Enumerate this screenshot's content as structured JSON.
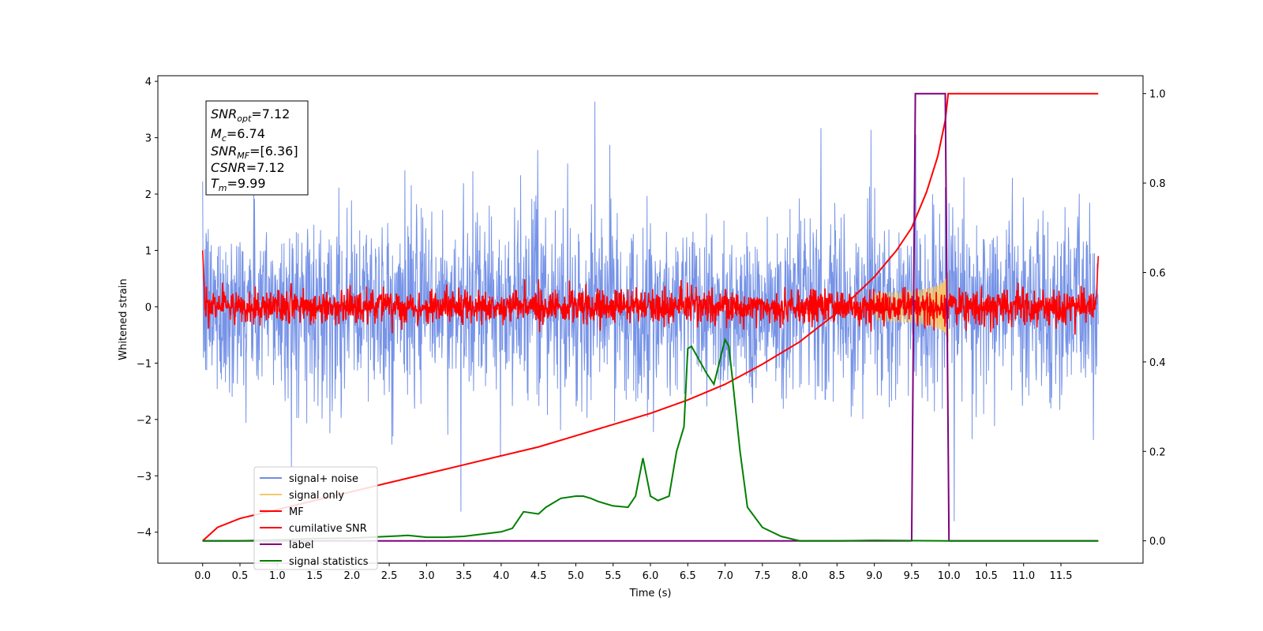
{
  "chart_data": {
    "type": "line",
    "xlabel": "Time (s)",
    "ylabel": "Whitened strain",
    "xlim": [
      -0.6,
      12.6
    ],
    "ylim": [
      -4.55,
      4.1
    ],
    "y2lim": [
      -0.05,
      1.04
    ],
    "x_ticks": [
      "0.0",
      "0.5",
      "1.0",
      "1.5",
      "2.0",
      "2.5",
      "3.0",
      "3.5",
      "4.0",
      "4.5",
      "5.0",
      "5.5",
      "6.0",
      "6.5",
      "7.0",
      "7.5",
      "8.0",
      "8.5",
      "9.0",
      "9.5",
      "10.0",
      "10.5",
      "11.0",
      "11.5"
    ],
    "y_ticks": [
      "4",
      "3",
      "2",
      "1",
      "0",
      "−1",
      "−2",
      "−3",
      "−4"
    ],
    "y2_ticks": [
      "1.0",
      "0.8",
      "0.6",
      "0.4",
      "0.2",
      "0.0"
    ],
    "annotations": {
      "snr_opt": {
        "label": "SNR",
        "sub": "opt",
        "value": "=7.12"
      },
      "mc": {
        "label": "M",
        "sub": "c",
        "value": "=6.74"
      },
      "snr_mf": {
        "label": "SNR",
        "sub": "MF",
        "value": "=[6.36]"
      },
      "csnr": {
        "label": "CSNR",
        "sub": "",
        "value": "=7.12"
      },
      "tm": {
        "label": "T",
        "sub": "m",
        "value": "=9.99"
      }
    },
    "legend_position": "lower-left",
    "series": [
      {
        "name": "signal+ noise",
        "color": "#6f8de6",
        "axis": "left",
        "noise_std": 0.8,
        "t_range": [
          0.0,
          12.0
        ]
      },
      {
        "name": "signal only",
        "color": "#f5c66e",
        "axis": "left",
        "chirp_end": 9.99,
        "peak_amplitude": 0.65
      },
      {
        "name": "MF",
        "color": "#ff0000",
        "axis": "left",
        "noise_std": 0.15,
        "t_range": [
          0.0,
          12.0
        ]
      },
      {
        "name": "cumilative SNR",
        "color": "#ff0000",
        "axis": "right",
        "x": [
          0.0,
          0.2,
          0.5,
          1.0,
          1.5,
          2.0,
          2.5,
          3.0,
          3.5,
          4.0,
          4.5,
          5.0,
          5.5,
          6.0,
          6.5,
          7.0,
          7.5,
          8.0,
          8.5,
          9.0,
          9.3,
          9.5,
          9.7,
          9.85,
          9.95,
          9.99,
          10.5,
          11.0,
          11.5,
          12.0
        ],
        "y": [
          0.0,
          0.03,
          0.05,
          0.07,
          0.09,
          0.11,
          0.13,
          0.15,
          0.17,
          0.19,
          0.21,
          0.235,
          0.26,
          0.285,
          0.315,
          0.35,
          0.395,
          0.445,
          0.51,
          0.59,
          0.65,
          0.7,
          0.78,
          0.86,
          0.94,
          1.0,
          1.0,
          1.0,
          1.0,
          1.0
        ]
      },
      {
        "name": "label",
        "color": "#800080",
        "axis": "right",
        "x": [
          0.0,
          9.5,
          9.55,
          9.95,
          10.0,
          12.0
        ],
        "y": [
          0.0,
          0.0,
          1.0,
          1.0,
          0.0,
          0.0
        ]
      },
      {
        "name": "signal statistics",
        "color": "#008000",
        "axis": "right",
        "x": [
          0.0,
          0.5,
          1.0,
          1.5,
          2.0,
          2.5,
          2.75,
          3.0,
          3.25,
          3.5,
          3.75,
          4.0,
          4.15,
          4.3,
          4.5,
          4.6,
          4.8,
          5.0,
          5.1,
          5.2,
          5.3,
          5.5,
          5.7,
          5.8,
          5.9,
          6.0,
          6.1,
          6.25,
          6.35,
          6.45,
          6.5,
          6.55,
          6.6,
          6.65,
          6.75,
          6.85,
          7.0,
          7.05,
          7.1,
          7.2,
          7.3,
          7.5,
          7.75,
          8.0,
          8.5,
          9.0,
          10.0,
          11.0,
          11.5,
          12.0
        ],
        "y": [
          0.0,
          0.0,
          0.002,
          0.005,
          0.006,
          0.01,
          0.012,
          0.008,
          0.008,
          0.01,
          0.015,
          0.02,
          0.028,
          0.065,
          0.06,
          0.075,
          0.095,
          0.1,
          0.1,
          0.095,
          0.088,
          0.078,
          0.075,
          0.1,
          0.185,
          0.1,
          0.09,
          0.1,
          0.2,
          0.255,
          0.43,
          0.435,
          0.42,
          0.405,
          0.375,
          0.35,
          0.45,
          0.435,
          0.36,
          0.2,
          0.075,
          0.03,
          0.01,
          0.0,
          0.0,
          0.001,
          0.0,
          0.0,
          0.0,
          0.0
        ]
      }
    ]
  }
}
